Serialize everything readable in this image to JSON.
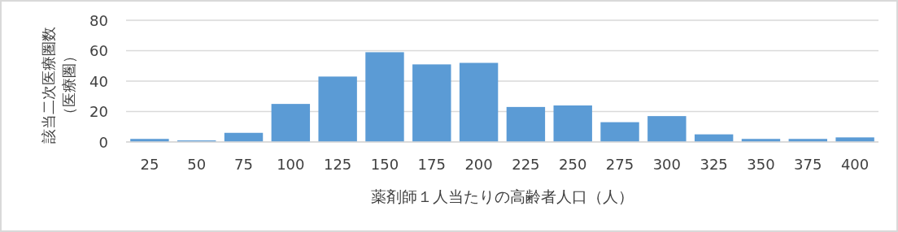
{
  "chart_data": {
    "type": "bar",
    "xlabel": "薬剤師１人当たりの高齢者人口（人）",
    "ylabel": "該当二次医療圏数（医療圏）",
    "categories": [
      "25",
      "50",
      "75",
      "100",
      "125",
      "150",
      "175",
      "200",
      "225",
      "250",
      "275",
      "300",
      "325",
      "350",
      "375",
      "400"
    ],
    "values": [
      2,
      1,
      6,
      25,
      43,
      59,
      51,
      52,
      23,
      24,
      13,
      17,
      5,
      2,
      2,
      3
    ],
    "color": "#5b9bd5",
    "ylim": [
      0,
      80
    ],
    "yticks": [
      0,
      20,
      40,
      60,
      80
    ],
    "grid": "y"
  }
}
